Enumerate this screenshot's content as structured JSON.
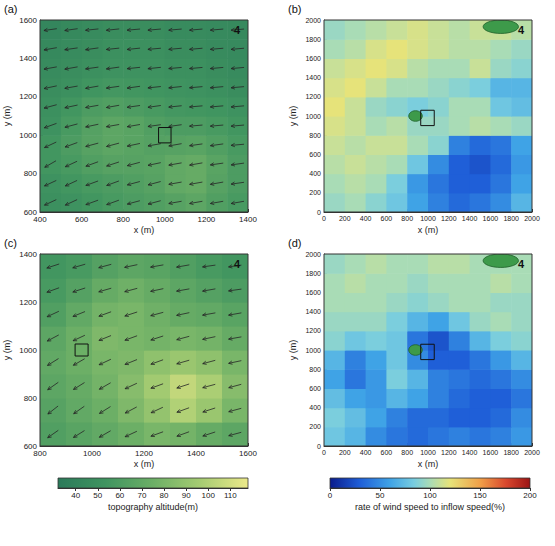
{
  "chart_data": [
    {
      "type": "heatmap",
      "panel": "(a)",
      "label": "4",
      "xlabel": "x (m)",
      "ylabel": "y (m)",
      "xlim": [
        400,
        1400
      ],
      "ylim": [
        600,
        1600
      ],
      "xticks": [
        400,
        600,
        800,
        1000,
        1200,
        1400
      ],
      "yticks": [
        600,
        800,
        1000,
        1200,
        1400,
        1600
      ],
      "x_edges": [
        400,
        500,
        600,
        700,
        800,
        900,
        1000,
        1100,
        1200,
        1300,
        1400
      ],
      "y_edges": [
        600,
        700,
        800,
        900,
        1000,
        1100,
        1200,
        1300,
        1400,
        1500,
        1600
      ],
      "z": [
        [
          50,
          52,
          55,
          58,
          60,
          62,
          65,
          68,
          62,
          58
        ],
        [
          52,
          55,
          58,
          60,
          62,
          65,
          70,
          72,
          65,
          60
        ],
        [
          55,
          58,
          62,
          65,
          65,
          66,
          70,
          72,
          66,
          60
        ],
        [
          55,
          60,
          65,
          68,
          66,
          64,
          65,
          66,
          62,
          58
        ],
        [
          52,
          58,
          64,
          68,
          66,
          62,
          60,
          60,
          58,
          55
        ],
        [
          50,
          55,
          60,
          62,
          60,
          58,
          56,
          55,
          54,
          52
        ],
        [
          48,
          50,
          54,
          56,
          55,
          54,
          53,
          52,
          50,
          48
        ],
        [
          46,
          48,
          50,
          52,
          52,
          52,
          50,
          50,
          48,
          46
        ],
        [
          44,
          46,
          48,
          50,
          50,
          50,
          48,
          48,
          46,
          45
        ],
        [
          42,
          44,
          46,
          48,
          48,
          48,
          46,
          46,
          45,
          44
        ]
      ],
      "vectors": {
        "x": [
          450,
          550,
          650,
          750,
          850,
          950,
          1050,
          1150,
          1250,
          1350
        ],
        "y": [
          650,
          750,
          850,
          950,
          1050,
          1150,
          1250,
          1350,
          1450,
          1550
        ],
        "angle": [
          [
            205,
            205,
            200,
            200,
            195,
            195,
            190,
            190,
            190,
            190
          ],
          [
            205,
            205,
            200,
            200,
            195,
            195,
            190,
            190,
            190,
            188
          ],
          [
            210,
            205,
            200,
            198,
            195,
            192,
            190,
            190,
            188,
            188
          ],
          [
            205,
            200,
            195,
            195,
            192,
            190,
            190,
            188,
            188,
            185
          ],
          [
            200,
            195,
            192,
            190,
            190,
            188,
            188,
            185,
            185,
            185
          ],
          [
            195,
            192,
            190,
            190,
            188,
            188,
            186,
            185,
            185,
            185
          ],
          [
            192,
            190,
            190,
            188,
            188,
            186,
            186,
            185,
            185,
            185
          ],
          [
            190,
            190,
            188,
            188,
            186,
            186,
            185,
            185,
            185,
            185
          ],
          [
            190,
            188,
            188,
            186,
            186,
            185,
            185,
            185,
            185,
            185
          ],
          [
            188,
            188,
            186,
            186,
            185,
            185,
            185,
            185,
            185,
            185
          ]
        ]
      },
      "box": {
        "x": [
          970,
          1030
        ],
        "y": [
          960,
          1040
        ]
      }
    },
    {
      "type": "heatmap",
      "panel": "(b)",
      "label": "4",
      "xlabel": "x (m)",
      "ylabel": "y (m)",
      "xlim": [
        0,
        2000
      ],
      "ylim": [
        0,
        2000
      ],
      "xticks": [
        0,
        200,
        400,
        600,
        800,
        1000,
        1200,
        1400,
        1600,
        1800,
        2000
      ],
      "yticks": [
        0,
        200,
        400,
        600,
        800,
        1000,
        1200,
        1400,
        1600,
        1800,
        2000
      ],
      "x_edges": [
        0,
        200,
        400,
        600,
        800,
        1000,
        1200,
        1400,
        1600,
        1800,
        2000
      ],
      "y_edges": [
        0,
        200,
        400,
        600,
        800,
        1000,
        1200,
        1400,
        1600,
        1800,
        2000
      ],
      "z": [
        [
          95,
          100,
          90,
          80,
          60,
          45,
          35,
          40,
          50,
          70
        ],
        [
          100,
          105,
          100,
          85,
          55,
          40,
          30,
          30,
          40,
          60
        ],
        [
          105,
          110,
          105,
          100,
          80,
          50,
          30,
          25,
          35,
          55
        ],
        [
          110,
          105,
          110,
          110,
          100,
          90,
          45,
          35,
          40,
          60
        ],
        [
          115,
          110,
          100,
          105,
          95,
          95,
          100,
          105,
          100,
          95
        ],
        [
          120,
          110,
          95,
          90,
          85,
          90,
          100,
          100,
          80,
          75
        ],
        [
          115,
          120,
          110,
          100,
          100,
          95,
          90,
          85,
          70,
          70
        ],
        [
          110,
          115,
          120,
          115,
          105,
          100,
          100,
          110,
          95,
          90
        ],
        [
          100,
          105,
          115,
          120,
          115,
          110,
          105,
          105,
          100,
          95
        ],
        [
          95,
          100,
          105,
          110,
          115,
          110,
          105,
          110,
          110,
          105
        ]
      ],
      "patches": [
        {
          "x": 880,
          "y": 1000,
          "rx": 65,
          "ry": 55,
          "color": "#3d9a4a"
        },
        {
          "x": 1700,
          "y": 1930,
          "rx": 170,
          "ry": 70,
          "color": "#3d9a4a"
        }
      ],
      "box": {
        "x": [
          930,
          1060
        ],
        "y": [
          900,
          1060
        ]
      }
    },
    {
      "type": "heatmap",
      "panel": "(c)",
      "label": "4",
      "xlabel": "x (m)",
      "ylabel": "y (m)",
      "xlim": [
        800,
        1600
      ],
      "ylim": [
        600,
        1400
      ],
      "xticks": [
        800,
        1000,
        1200,
        1400,
        1600
      ],
      "yticks": [
        600,
        800,
        1000,
        1200,
        1400
      ],
      "x_edges": [
        800,
        900,
        1000,
        1100,
        1200,
        1300,
        1400,
        1500,
        1600
      ],
      "y_edges": [
        600,
        700,
        800,
        900,
        1000,
        1100,
        1200,
        1300,
        1400
      ],
      "z": [
        [
          62,
          66,
          70,
          75,
          80,
          78,
          72,
          68
        ],
        [
          65,
          70,
          75,
          82,
          90,
          100,
          92,
          80
        ],
        [
          68,
          72,
          78,
          85,
          95,
          105,
          98,
          85
        ],
        [
          70,
          75,
          80,
          82,
          88,
          92,
          88,
          80
        ],
        [
          68,
          75,
          82,
          80,
          78,
          80,
          78,
          72
        ],
        [
          62,
          70,
          78,
          80,
          76,
          72,
          70,
          66
        ],
        [
          58,
          64,
          72,
          76,
          72,
          68,
          64,
          60
        ],
        [
          55,
          58,
          64,
          68,
          66,
          62,
          58,
          55
        ]
      ],
      "vectors": {
        "x": [
          850,
          950,
          1050,
          1150,
          1250,
          1350,
          1450,
          1550
        ],
        "y": [
          650,
          750,
          850,
          950,
          1050,
          1150,
          1250,
          1350
        ],
        "angle": [
          [
            215,
            212,
            210,
            205,
            200,
            200,
            198,
            195
          ],
          [
            218,
            215,
            212,
            208,
            205,
            200,
            198,
            195
          ],
          [
            215,
            212,
            210,
            205,
            200,
            198,
            195,
            195
          ],
          [
            212,
            210,
            205,
            202,
            200,
            196,
            195,
            192
          ],
          [
            208,
            205,
            202,
            200,
            198,
            195,
            192,
            190
          ],
          [
            205,
            202,
            200,
            198,
            195,
            192,
            190,
            190
          ],
          [
            200,
            198,
            196,
            195,
            192,
            190,
            190,
            188
          ],
          [
            198,
            196,
            195,
            192,
            190,
            190,
            188,
            188
          ]
        ]
      },
      "box": {
        "x": [
          935,
          985
        ],
        "y": [
          975,
          1025
        ]
      },
      "colorbar": {
        "label": "topography altitude(m)",
        "lim": [
          32,
          118
        ],
        "ticks": [
          40,
          50,
          60,
          70,
          80,
          90,
          100,
          110
        ]
      }
    },
    {
      "type": "heatmap",
      "panel": "(d)",
      "label": "4",
      "xlabel": "x (m)",
      "ylabel": "y (m)",
      "xlim": [
        0,
        2000
      ],
      "ylim": [
        0,
        2000
      ],
      "xticks": [
        0,
        200,
        400,
        600,
        800,
        1000,
        1200,
        1400,
        1600,
        1800,
        2000
      ],
      "yticks": [
        0,
        200,
        400,
        600,
        800,
        1000,
        1200,
        1400,
        1600,
        1800,
        2000
      ],
      "x_edges": [
        0,
        200,
        400,
        600,
        800,
        1000,
        1200,
        1400,
        1600,
        1800,
        2000
      ],
      "y_edges": [
        0,
        200,
        400,
        600,
        800,
        1000,
        1200,
        1400,
        1600,
        1800,
        2000
      ],
      "z": [
        [
          80,
          70,
          50,
          40,
          35,
          40,
          45,
          40,
          45,
          55
        ],
        [
          85,
          75,
          60,
          45,
          35,
          35,
          30,
          30,
          35,
          50
        ],
        [
          75,
          60,
          55,
          70,
          60,
          45,
          35,
          30,
          30,
          40
        ],
        [
          60,
          40,
          55,
          85,
          70,
          45,
          40,
          35,
          40,
          50
        ],
        [
          70,
          45,
          60,
          80,
          50,
          30,
          30,
          40,
          55,
          70
        ],
        [
          90,
          80,
          85,
          80,
          40,
          25,
          45,
          70,
          85,
          90
        ],
        [
          95,
          95,
          95,
          85,
          70,
          60,
          80,
          95,
          100,
          95
        ],
        [
          100,
          100,
          100,
          95,
          90,
          95,
          100,
          100,
          95,
          95
        ],
        [
          100,
          105,
          100,
          100,
          95,
          100,
          100,
          100,
          105,
          100
        ],
        [
          95,
          100,
          105,
          100,
          100,
          105,
          105,
          100,
          100,
          100
        ]
      ],
      "patches": [
        {
          "x": 880,
          "y": 1000,
          "rx": 65,
          "ry": 55,
          "color": "#3d9a4a"
        },
        {
          "x": 1700,
          "y": 1930,
          "rx": 170,
          "ry": 70,
          "color": "#3d9a4a"
        }
      ],
      "box": {
        "x": [
          930,
          1060
        ],
        "y": [
          900,
          1060
        ]
      },
      "colorbar": {
        "label": "rate of wind speed to inflow speed(%)",
        "lim": [
          0,
          200
        ],
        "ticks": [
          0,
          50,
          100,
          150,
          200
        ]
      }
    }
  ]
}
